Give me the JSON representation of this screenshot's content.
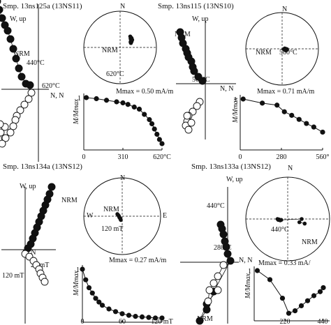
{
  "panels": [
    {
      "title": "Smp. 13ns125a (13NS11)",
      "zijder": {
        "axis_up": "W, up",
        "axis_n": "N, N",
        "label_nrm": "NRM",
        "label_mid": "440°C",
        "label_end": "620°C",
        "filled": [
          [
            -62,
            137
          ],
          [
            -59,
            126
          ],
          [
            -56,
            114
          ],
          [
            -52,
            102
          ],
          [
            -48,
            92
          ],
          [
            -44,
            84
          ],
          [
            -40,
            72
          ],
          [
            -36,
            58
          ],
          [
            -32,
            44
          ],
          [
            -28,
            30
          ],
          [
            -24,
            18
          ],
          [
            -18,
            8
          ],
          [
            -12,
            6
          ]
        ],
        "open": [
          [
            -10,
            -5
          ],
          [
            -14,
            -14
          ],
          [
            -20,
            -22
          ],
          [
            -26,
            -30
          ],
          [
            -31,
            -38
          ],
          [
            -33,
            -44
          ],
          [
            -36,
            -53
          ],
          [
            -40,
            -62
          ],
          [
            -47,
            -70
          ],
          [
            -52,
            -78
          ],
          [
            -54,
            -62
          ],
          [
            -48,
            -54
          ],
          [
            -55,
            -50
          ]
        ]
      },
      "stereonet": {
        "north": "N",
        "label_nrm": "NRM",
        "label_end": "620°C",
        "points": [
          [
            0.62,
            -0.55
          ],
          [
            0.66,
            -0.5
          ],
          [
            0.7,
            -0.47
          ],
          [
            0.64,
            -0.44
          ],
          [
            0.71,
            -0.43
          ],
          [
            0.68,
            -0.4
          ],
          [
            0.74,
            -0.38
          ],
          [
            0.72,
            -0.35
          ],
          [
            0.66,
            -0.33
          ],
          [
            0.7,
            -0.29
          ],
          [
            0.64,
            -0.27
          ],
          [
            0.66,
            -0.22
          ]
        ]
      },
      "chart_data": {
        "type": "line",
        "xlabel": "",
        "ylabel": "M/Mmax",
        "annotation": "Mmax = 0.50 mA/m",
        "x": [
          20,
          100,
          180,
          260,
          310,
          350,
          400,
          440,
          480,
          520,
          540,
          560,
          580,
          600,
          620
        ],
        "y": [
          1.0,
          0.98,
          0.95,
          0.92,
          0.9,
          0.87,
          0.82,
          0.78,
          0.68,
          0.58,
          0.5,
          0.4,
          0.3,
          0.2,
          0.12
        ],
        "xlim": [
          0,
          620
        ],
        "ylim": [
          0,
          1
        ],
        "xticks": [
          "0",
          "310",
          "620°C"
        ],
        "yticks": [
          "1"
        ]
      }
    },
    {
      "title": "Smp. 13ns115 (13NS10)",
      "zijder": {
        "axis_up": "W, up",
        "axis_n": "N, N",
        "label_nrm": "NRM",
        "label_end": "560°C",
        "filled": [
          [
            -36,
            74
          ],
          [
            -34,
            66
          ],
          [
            -32,
            58
          ],
          [
            -28,
            50
          ],
          [
            -26,
            44
          ],
          [
            -24,
            38
          ],
          [
            -20,
            32
          ],
          [
            -18,
            24
          ],
          [
            -16,
            18
          ],
          [
            -10,
            10
          ],
          [
            -4,
            4
          ]
        ],
        "open": [
          [
            -8,
            -26
          ],
          [
            -12,
            -32
          ],
          [
            -18,
            -40
          ],
          [
            -24,
            -46
          ],
          [
            -26,
            -54
          ],
          [
            -28,
            -60
          ],
          [
            -24,
            -66
          ],
          [
            -26,
            -46
          ],
          [
            -20,
            -56
          ]
        ]
      },
      "stereonet": {
        "north": "N",
        "label_nrm": "NRM",
        "label_end": "560°C",
        "points": [
          [
            0.1,
            0.02
          ],
          [
            0.16,
            -0.02
          ],
          [
            0.2,
            0.04
          ],
          [
            0.24,
            0.0
          ],
          [
            0.28,
            0.06
          ],
          [
            0.22,
            0.08
          ],
          [
            0.3,
            0.02
          ]
        ]
      },
      "chart_data": {
        "type": "line",
        "xlabel": "",
        "ylabel": "M/Mmax",
        "annotation": "Mmax = 0.71 mA/m",
        "x": [
          20,
          150,
          250,
          300,
          350,
          400,
          450,
          500,
          560
        ],
        "y": [
          1.0,
          0.92,
          0.88,
          0.75,
          0.68,
          0.6,
          0.52,
          0.45,
          0.35
        ],
        "xlim": [
          0,
          560
        ],
        "ylim": [
          0,
          1
        ],
        "xticks": [
          "0",
          "280",
          "560°"
        ],
        "yticks": [
          "1"
        ]
      }
    },
    {
      "title": "Smp. 13ns134a (13NS12)",
      "zijder": {
        "axis_up": "W, up",
        "axis_n": "N, N",
        "label_nrm": "NRM",
        "label_mid": "20 mT",
        "label_end": "120 mT",
        "filled": [
          [
            38,
            90
          ],
          [
            35,
            80
          ],
          [
            32,
            72
          ],
          [
            29,
            64
          ],
          [
            26,
            56
          ],
          [
            23,
            48
          ],
          [
            20,
            40
          ],
          [
            17,
            32
          ],
          [
            14,
            24
          ],
          [
            11,
            16
          ],
          [
            8,
            8
          ],
          [
            4,
            2
          ]
        ],
        "open": [
          [
            0,
            -6
          ],
          [
            6,
            -10
          ],
          [
            12,
            -16
          ],
          [
            16,
            -22
          ],
          [
            20,
            -28
          ],
          [
            22,
            -34
          ],
          [
            25,
            -40
          ],
          [
            28,
            -46
          ]
        ]
      },
      "stereonet": {
        "north": "N",
        "west": "W",
        "east": "E",
        "label_nrm": "NRM",
        "label_end": "120 mT",
        "points": [
          [
            -0.28,
            -0.1
          ],
          [
            -0.24,
            -0.06
          ],
          [
            -0.2,
            -0.02
          ],
          [
            -0.18,
            0.02
          ],
          [
            -0.16,
            0.06
          ],
          [
            -0.14,
            0.08
          ],
          [
            -0.12,
            0.1
          ],
          [
            -0.1,
            0.14
          ],
          [
            -0.08,
            0.18
          ]
        ]
      },
      "chart_data": {
        "type": "line",
        "xlabel": "",
        "ylabel": "M/Mmax",
        "annotation": "Mmax = 0.27 mA/m",
        "x": [
          0,
          5,
          10,
          15,
          20,
          25,
          30,
          40,
          50,
          60,
          70,
          80,
          90,
          100,
          110,
          120
        ],
        "y": [
          1.0,
          0.8,
          0.65,
          0.55,
          0.45,
          0.38,
          0.32,
          0.25,
          0.2,
          0.16,
          0.13,
          0.11,
          0.1,
          0.09,
          0.08,
          0.08
        ],
        "xlim": [
          0,
          120
        ],
        "ylim": [
          0,
          1
        ],
        "xticks": [
          "0",
          "60",
          "120 mT"
        ],
        "yticks": [
          "1"
        ]
      }
    },
    {
      "title": "Smp. 13ns133a (13NS12)",
      "zijder": {
        "axis_up": "W, up",
        "axis_n": "N, N",
        "label_nrm": "NRM",
        "label_mid": "280°C",
        "label_end": "440°C",
        "filled": [
          [
            -10,
            54
          ],
          [
            -8,
            48
          ],
          [
            -6,
            40
          ],
          [
            -4,
            30
          ],
          [
            -2,
            22
          ],
          [
            0,
            12
          ],
          [
            4,
            2
          ],
          [
            -20,
            -42
          ],
          [
            -30,
            -68
          ],
          [
            -40,
            -84
          ],
          [
            -30,
            -60
          ]
        ],
        "open": [
          [
            -6,
            -4
          ],
          [
            -14,
            -20
          ],
          [
            -20,
            -30
          ],
          [
            -26,
            -40
          ],
          [
            -28,
            -56
          ],
          [
            -14,
            -40
          ]
        ]
      },
      "stereonet": {
        "north": "N",
        "label_nrm": "NRM",
        "label_end": "440°C",
        "points": [
          [
            -0.54,
            0.0
          ],
          [
            -0.5,
            0.04
          ],
          [
            -0.46,
            0.02
          ],
          [
            -0.4,
            0.06
          ],
          [
            -0.34,
            0.04
          ],
          [
            0.74,
            0.0
          ],
          [
            0.62,
            0.14
          ],
          [
            0.9,
            0.2
          ]
        ]
      },
      "chart_data": {
        "type": "line",
        "xlabel": "",
        "ylabel": "M/Mmax",
        "annotation": "Mmax = 0.33 mA/",
        "x": [
          20,
          100,
          180,
          220,
          260,
          300,
          340,
          380,
          420,
          440
        ],
        "y": [
          1.0,
          0.82,
          0.45,
          0.15,
          0.2,
          0.3,
          0.4,
          0.5,
          0.58,
          0.66
        ],
        "xlim": [
          0,
          480
        ],
        "ylim": [
          0,
          1
        ],
        "xticks": [
          "220",
          "440"
        ],
        "yticks": [
          "1"
        ]
      }
    }
  ]
}
